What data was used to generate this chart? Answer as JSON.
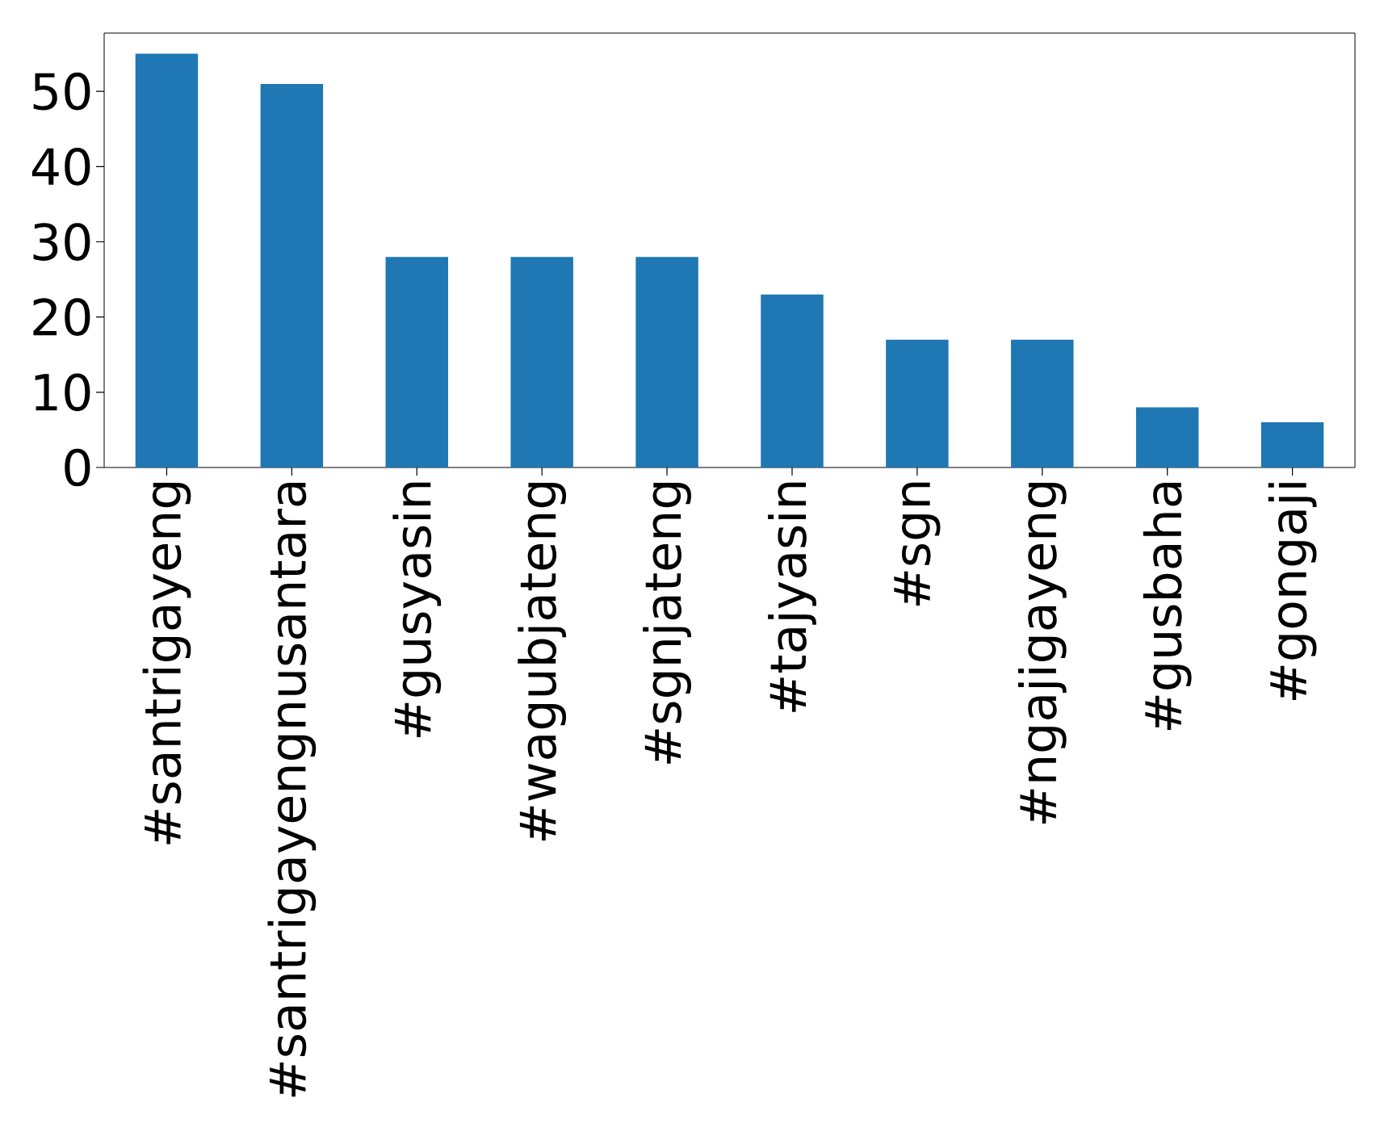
{
  "chart_data": {
    "type": "bar",
    "categories": [
      "#santrigayeng",
      "#santrigayengnusantara",
      "#gusyasin",
      "#wagubjateng",
      "#sgnjateng",
      "#tajyasin",
      "#sgn",
      "#ngajigayeng",
      "#gusbaha",
      "#gongaji"
    ],
    "values": [
      55,
      51,
      28,
      28,
      28,
      23,
      17,
      17,
      8,
      6
    ],
    "color": "#1f77b4",
    "ylim": [
      0,
      57.75
    ],
    "yticks": [
      0,
      10,
      20,
      30,
      40,
      50
    ]
  }
}
